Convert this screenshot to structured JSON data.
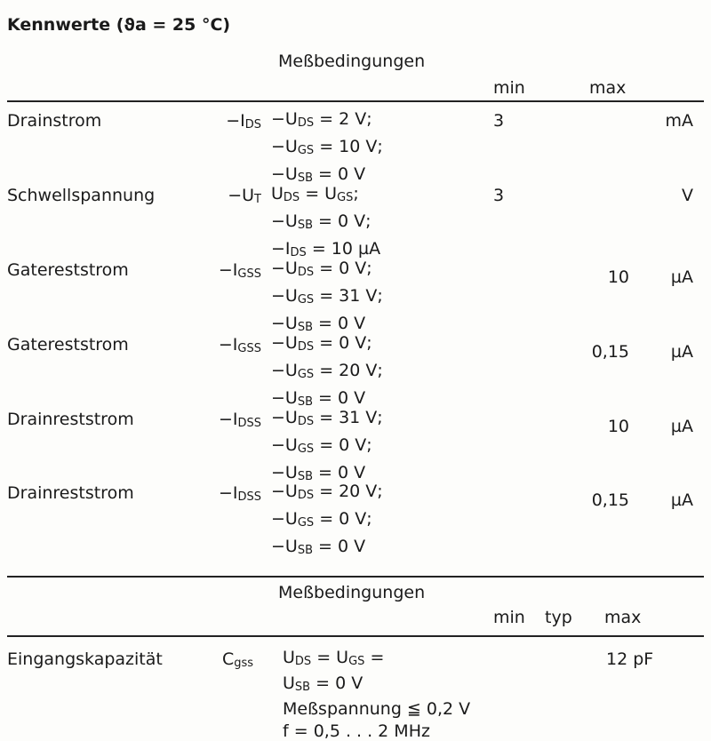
{
  "title": "Kennwerte (ϑa = 25 °C)",
  "table1": {
    "conditions_header": "Meßbedingungen",
    "min_header": "min",
    "max_header": "max",
    "rows": [
      {
        "name": "Drainstrom",
        "sym": "−I",
        "sym_sub": "DS",
        "conds": [
          [
            "−U",
            "DS",
            " =  2 V;"
          ],
          [
            "−U",
            "GS",
            " = 10 V;"
          ],
          [
            "−U",
            "SB",
            " =  0 V"
          ]
        ],
        "min": "3",
        "max": "",
        "unit": "mA"
      },
      {
        "name": "Schwellspannung",
        "sym": "−U",
        "sym_sub": "T",
        "conds": [
          [
            "U",
            "DS",
            "  = U",
            "GS",
            ";"
          ],
          [
            "−U",
            "SB",
            " =  0 V;"
          ],
          [
            "−I",
            "DS",
            "  = 10 µA"
          ]
        ],
        "min": "3",
        "max": "",
        "unit": "V"
      },
      {
        "name": "Gatereststrom",
        "sym": "−I",
        "sym_sub": "GSS",
        "conds": [
          [
            "−U",
            "DS",
            " =  0 V;"
          ],
          [
            "−U",
            "GS",
            " = 31 V;"
          ],
          [
            "−U",
            "SB",
            " =  0 V"
          ]
        ],
        "min": "",
        "max": "10",
        "unit": "µA"
      },
      {
        "name": "Gatereststrom",
        "sym": "−I",
        "sym_sub": "GSS",
        "conds": [
          [
            "−U",
            "DS",
            " =  0 V;"
          ],
          [
            "−U",
            "GS",
            " = 20 V;"
          ],
          [
            "−U",
            "SB",
            " =  0 V"
          ]
        ],
        "min": "",
        "max": "0,15",
        "unit": "µA"
      },
      {
        "name": "Drainreststrom",
        "sym": "−I",
        "sym_sub": "DSS",
        "conds": [
          [
            "−U",
            "DS",
            " = 31 V;"
          ],
          [
            "−U",
            "GS",
            " =  0 V;"
          ],
          [
            "−U",
            "SB",
            " =  0 V"
          ]
        ],
        "min": "",
        "max": "10",
        "unit": "µA"
      },
      {
        "name": "Drainreststrom",
        "sym": "−I",
        "sym_sub": "DSS",
        "conds": [
          [
            "−U",
            "DS",
            " = 20 V;"
          ],
          [
            "−U",
            "GS",
            " =  0 V;"
          ],
          [
            "−U",
            "SB",
            " =  0 V"
          ]
        ],
        "min": "",
        "max": "0,15",
        "unit": "µA"
      }
    ]
  },
  "table2": {
    "conditions_header": "Meßbedingungen",
    "min_header": "min",
    "typ_header": "typ",
    "max_header": "max",
    "row": {
      "name": "Eingangskapazität",
      "sym": "C",
      "sym_sub": "gss",
      "conds": [
        [
          "U",
          "DS",
          " = U",
          "GS",
          " ="
        ],
        [
          "U",
          "SB",
          " = 0 V"
        ],
        [
          "Meßspannung ≦ 0,2 V"
        ],
        [
          "f = 0,5 . . . 2 MHz"
        ]
      ],
      "max": "12 pF"
    }
  }
}
